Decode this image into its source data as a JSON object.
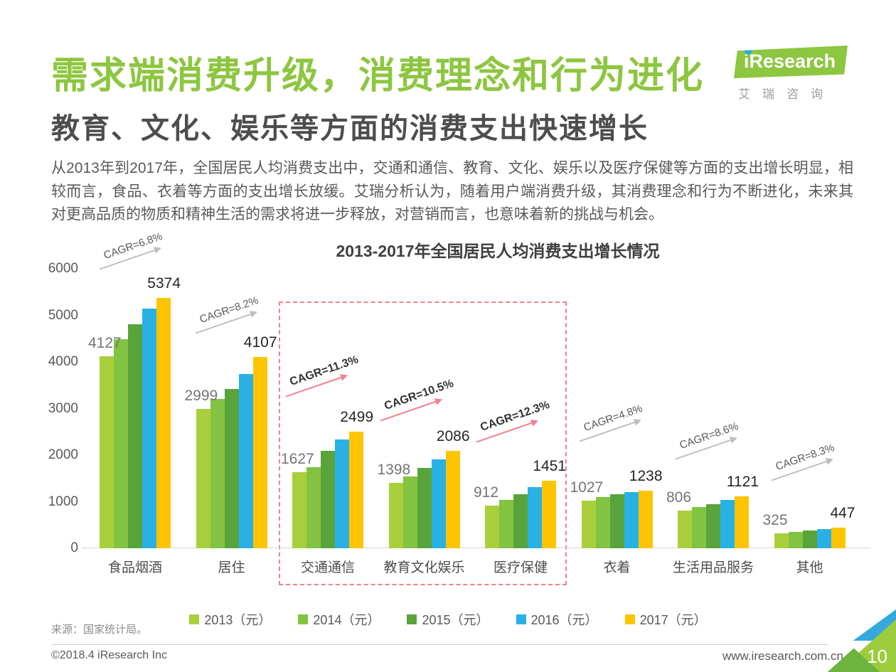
{
  "header": {
    "title": "需求端消费升级，消费理念和行为进化",
    "subtitle": "教育、文化、娱乐等方面的消费支出快速增长",
    "paragraph": "从2013年到2017年，全国居民人均消费支出中，交通和通信、教育、文化、娱乐以及医疗保健等方面的支出增长明显，相较而言，食品、衣着等方面的支出增长放缓。艾瑞分析认为，随着用户端消费升级，其消费理念和行为不断进化，未来其对更高品质的物质和精神生活的需求将进一步释放，对营销而言，也意味着新的挑战与机会。",
    "logo": {
      "brand": "iResearch",
      "brand_cn": "艾瑞咨询"
    }
  },
  "chart_data": {
    "type": "bar",
    "title": "2013-2017年全国居民人均消费支出增长情况",
    "categories": [
      "食品烟酒",
      "居住",
      "交通通信",
      "教育文化娱乐",
      "医疗保健",
      "衣着",
      "生活用品服务",
      "其他"
    ],
    "series": [
      {
        "name": "2013（元）",
        "color": "#a9cf3d",
        "values": [
          4127,
          2999,
          1627,
          1398,
          912,
          1027,
          806,
          325
        ]
      },
      {
        "name": "2014（元）",
        "color": "#82c341",
        "values": [
          4494,
          3201,
          1737,
          1536,
          1045,
          1099,
          890,
          358
        ]
      },
      {
        "name": "2015（元）",
        "color": "#58a43b",
        "values": [
          4814,
          3419,
          2087,
          1723,
          1166,
          1164,
          951,
          389
        ]
      },
      {
        "name": "2016（元）",
        "color": "#29b1e6",
        "values": [
          5151,
          3746,
          2338,
          1915,
          1307,
          1203,
          1044,
          406
        ]
      },
      {
        "name": "2017（元）",
        "color": "#fdc500",
        "values": [
          5374,
          4107,
          2499,
          2086,
          1451,
          1238,
          1121,
          447
        ]
      }
    ],
    "value_labels": {
      "start": [
        4127,
        2999,
        1627,
        1398,
        912,
        1027,
        806,
        325
      ],
      "end": [
        5374,
        4107,
        2499,
        2086,
        1451,
        1238,
        1121,
        447
      ]
    },
    "cagr": [
      {
        "text": "CAGR=6.8%",
        "highlighted": false
      },
      {
        "text": "CAGR=8.2%",
        "highlighted": false
      },
      {
        "text": "CAGR=11.3%",
        "highlighted": true
      },
      {
        "text": "CAGR=10.5%",
        "highlighted": true
      },
      {
        "text": "CAGR=12.3%",
        "highlighted": true
      },
      {
        "text": "CAGR=4.8%",
        "highlighted": false
      },
      {
        "text": "CAGR=8.6%",
        "highlighted": false
      },
      {
        "text": "CAGR=8.3%",
        "highlighted": false
      }
    ],
    "highlight_box_categories": [
      "交通通信",
      "教育文化娱乐",
      "医疗保健"
    ],
    "ylim": [
      0,
      6000
    ],
    "yticks": [
      0,
      1000,
      2000,
      3000,
      4000,
      5000,
      6000
    ],
    "grid": false,
    "legend_position": "bottom",
    "accent_colors": {
      "highlight_pink": "#f0818f",
      "gray_arrow": "#bfbfbf",
      "brand_green": "#8dc63f"
    }
  },
  "source": "来源：国家统计局。",
  "footer": {
    "copyright": "©2018.4 iResearch Inc",
    "website": "www.iresearch.com.cn",
    "page": "10"
  }
}
